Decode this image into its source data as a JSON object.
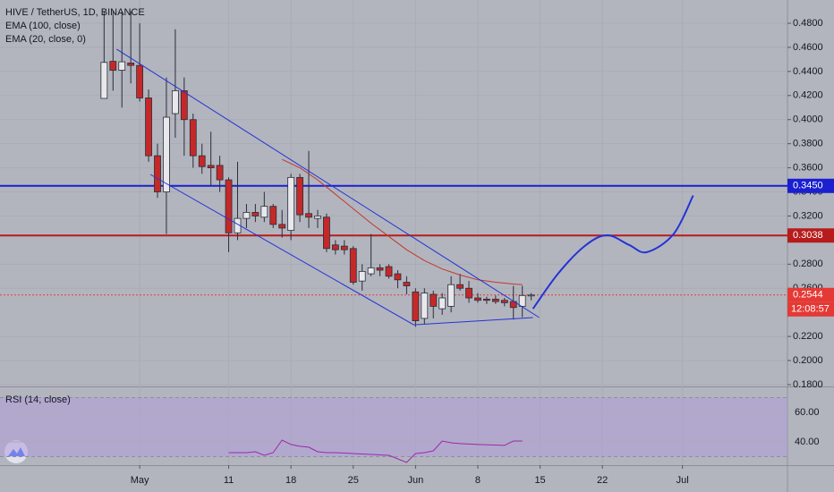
{
  "chart_data": {
    "type": "candlestick",
    "legend": [
      "HIVE / TetherUS, 1D, BINANCE",
      "EMA (100, close)",
      "EMA (20, close, 0)"
    ],
    "x": [
      -4,
      -3,
      -2,
      -1,
      0,
      1,
      2,
      3,
      4,
      5,
      6,
      7,
      8,
      9,
      10,
      11,
      12,
      13,
      14,
      15,
      16,
      17,
      18,
      19,
      20,
      21,
      22,
      23,
      24,
      25,
      26,
      27,
      28,
      29,
      30,
      31,
      32,
      33,
      34,
      35,
      36,
      37,
      38,
      39,
      40,
      41,
      42,
      43,
      44
    ],
    "open": [
      0.4176,
      0.4484,
      0.441,
      0.447,
      0.445,
      0.418,
      0.37,
      0.34,
      0.405,
      0.424,
      0.4,
      0.37,
      0.362,
      0.362,
      0.35,
      0.306,
      0.318,
      0.323,
      0.319,
      0.328,
      0.313,
      0.308,
      0.352,
      0.322,
      0.318,
      0.319,
      0.296,
      0.295,
      0.293,
      0.266,
      0.272,
      0.277,
      0.278,
      0.272,
      0.265,
      0.257,
      0.235,
      0.255,
      0.243,
      0.245,
      0.263,
      0.26,
      0.252,
      0.251,
      0.251,
      0.25,
      0.249,
      0.245,
      0.254
    ],
    "high": [
      0.49,
      0.49,
      0.49,
      0.49,
      0.48,
      0.425,
      0.38,
      0.435,
      0.475,
      0.435,
      0.405,
      0.38,
      0.39,
      0.37,
      0.352,
      0.365,
      0.33,
      0.33,
      0.34,
      0.33,
      0.325,
      0.355,
      0.355,
      0.374,
      0.325,
      0.322,
      0.3,
      0.3,
      0.295,
      0.28,
      0.305,
      0.28,
      0.28,
      0.275,
      0.27,
      0.26,
      0.26,
      0.258,
      0.256,
      0.27,
      0.272,
      0.266,
      0.256,
      0.253,
      0.254,
      0.252,
      0.262,
      0.262,
      0.256
    ],
    "low": [
      0.4176,
      0.424,
      0.41,
      0.43,
      0.415,
      0.365,
      0.335,
      0.305,
      0.385,
      0.37,
      0.36,
      0.355,
      0.345,
      0.34,
      0.29,
      0.3,
      0.31,
      0.315,
      0.315,
      0.31,
      0.302,
      0.3,
      0.315,
      0.31,
      0.31,
      0.29,
      0.288,
      0.288,
      0.263,
      0.258,
      0.27,
      0.27,
      0.268,
      0.26,
      0.255,
      0.228,
      0.23,
      0.235,
      0.238,
      0.24,
      0.258,
      0.248,
      0.248,
      0.247,
      0.247,
      0.245,
      0.234,
      0.236,
      0.25
    ],
    "close": [
      0.4475,
      0.441,
      0.448,
      0.445,
      0.418,
      0.37,
      0.34,
      0.402,
      0.424,
      0.4,
      0.37,
      0.361,
      0.36,
      0.35,
      0.306,
      0.318,
      0.323,
      0.32,
      0.328,
      0.313,
      0.31,
      0.352,
      0.321,
      0.319,
      0.32,
      0.293,
      0.292,
      0.292,
      0.265,
      0.274,
      0.277,
      0.275,
      0.27,
      0.267,
      0.262,
      0.233,
      0.256,
      0.245,
      0.252,
      0.263,
      0.26,
      0.252,
      0.25,
      0.25,
      0.249,
      0.248,
      0.244,
      0.254,
      0.2544
    ],
    "up_color": "#e8e8ec",
    "down_color": "#c62828",
    "ema": {
      "color": "#c0392b",
      "x": [
        16,
        18,
        20,
        22,
        24,
        26,
        28,
        30,
        32,
        34,
        36,
        38,
        40,
        42,
        43
      ],
      "values": [
        0.367,
        0.36,
        0.35,
        0.338,
        0.326,
        0.314,
        0.303,
        0.292,
        0.283,
        0.276,
        0.271,
        0.267,
        0.265,
        0.2635,
        0.263
      ]
    },
    "drawings": {
      "color": "#2533d6",
      "upper": {
        "x": [
          -2.6,
          44.9
        ],
        "values": [
          0.4585,
          0.2357
        ]
      },
      "lower": {
        "x": [
          1.2,
          30.8,
          44.2
        ],
        "values": [
          0.3545,
          0.2297,
          0.2357
        ]
      },
      "projection": {
        "x": [
          44.2,
          47,
          50,
          52.5,
          55,
          57,
          60,
          62.2
        ],
        "values": [
          0.243,
          0.272,
          0.295,
          0.304,
          0.296,
          0.29,
          0.305,
          0.337
        ]
      }
    },
    "levels": [
      {
        "value": 0.345,
        "label": "0.3450",
        "color": "#1a1fd0"
      },
      {
        "value": 0.3038,
        "label": "0.3038",
        "color": "#b71c1c"
      },
      {
        "value": 0.2544,
        "label": "0.2544",
        "color": "#e53935"
      }
    ],
    "countdown": "12:08:57",
    "xlim": [
      -15.7,
      72.8
    ],
    "ylim": [
      0.1785,
      0.4993
    ],
    "yticks": [
      {
        "value": 0.48,
        "label": "0.4800"
      },
      {
        "value": 0.46,
        "label": "0.4600"
      },
      {
        "value": 0.44,
        "label": "0.4400"
      },
      {
        "value": 0.42,
        "label": "0.4200"
      },
      {
        "value": 0.4,
        "label": "0.4000"
      },
      {
        "value": 0.38,
        "label": "0.3800"
      },
      {
        "value": 0.36,
        "label": "0.3600"
      },
      {
        "value": 0.34,
        "label": "0.3400"
      },
      {
        "value": 0.32,
        "label": "0.3200"
      },
      {
        "value": 0.28,
        "label": "0.2800"
      },
      {
        "value": 0.26,
        "label": "0.2600"
      },
      {
        "value": 0.22,
        "label": "0.2200"
      },
      {
        "value": 0.2,
        "label": "0.2000"
      },
      {
        "value": 0.18,
        "label": "0.1800"
      }
    ],
    "xticks": [
      {
        "value": 0,
        "label": "May"
      },
      {
        "value": 10,
        "label": "11"
      },
      {
        "value": 17,
        "label": "18"
      },
      {
        "value": 24,
        "label": "25"
      },
      {
        "value": 31,
        "label": "Jun"
      },
      {
        "value": 38,
        "label": "8"
      },
      {
        "value": 45,
        "label": "15"
      },
      {
        "value": 52,
        "label": "22"
      },
      {
        "value": 61,
        "label": "Jul"
      }
    ],
    "rsi": {
      "title": "RSI (14, close)",
      "color": "#9c27b0",
      "band": [
        30,
        70
      ],
      "ylim": [
        24.2,
        77
      ],
      "yticks": [
        {
          "value": 60,
          "label": "60.00"
        },
        {
          "value": 40,
          "label": "40.00"
        }
      ],
      "x": [
        10,
        12,
        13,
        14,
        15,
        16,
        17,
        18,
        19,
        20,
        21,
        22,
        24,
        26,
        28,
        30,
        31,
        32,
        33,
        34,
        35,
        36,
        38,
        41,
        42,
        43
      ],
      "values": [
        32.7,
        32.7,
        33.3,
        30.9,
        32.7,
        41.2,
        38.2,
        37.0,
        36.4,
        33.3,
        32.7,
        32.7,
        32.1,
        31.5,
        30.9,
        26.1,
        32.1,
        32.7,
        33.9,
        40.6,
        39.4,
        38.8,
        38.2,
        37.6,
        40.6,
        40.6
      ]
    }
  }
}
